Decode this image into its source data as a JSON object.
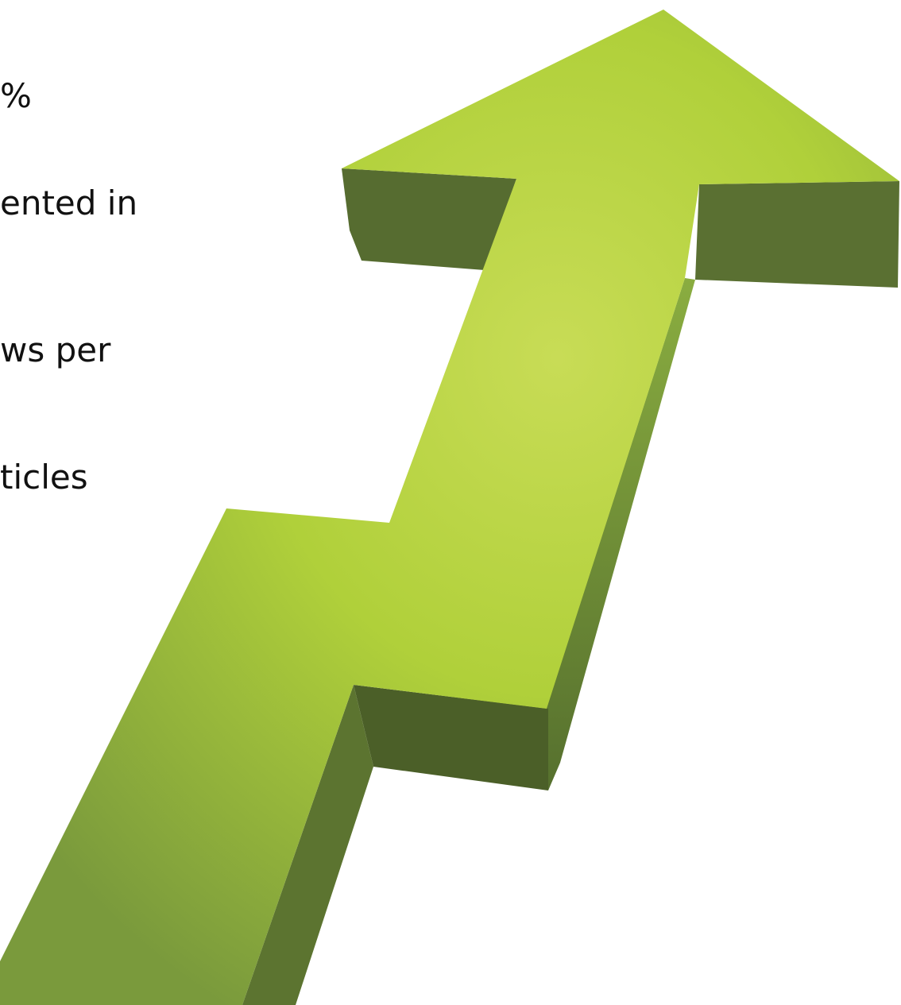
{
  "text_lines": [
    "%",
    "ented in",
    "ws per",
    "ticles"
  ]
}
